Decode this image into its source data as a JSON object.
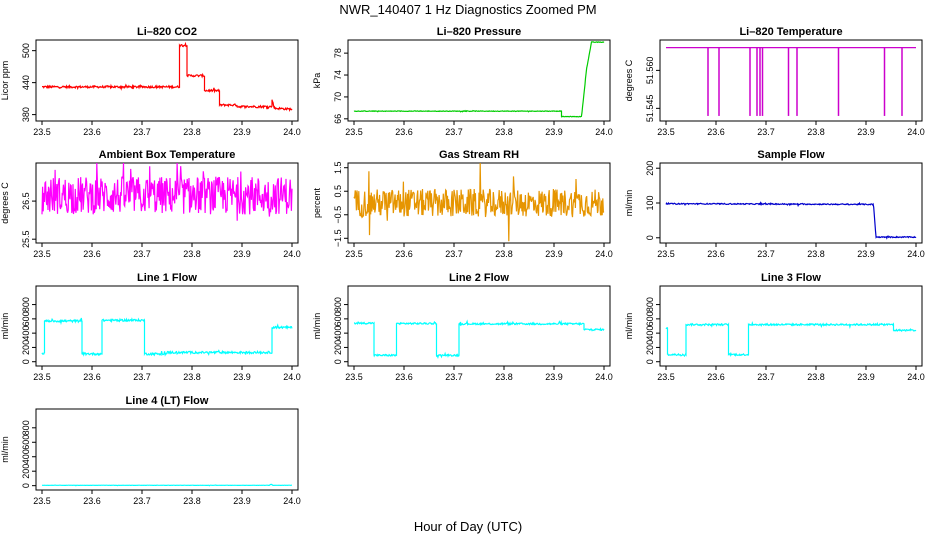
{
  "figure": {
    "title": "NWR_140407  1 Hz Diagnostics Zoomed PM",
    "xlabel": "Hour of Day (UTC)"
  },
  "chart_data": [
    {
      "id": "co2",
      "type": "line",
      "title": "Li–820 CO2",
      "ylabel": "Licor ppm",
      "color": "#ff0000",
      "xlim": [
        23.5,
        24.0
      ],
      "ylim": [
        368,
        520
      ],
      "yticks": [
        "380",
        "440",
        "500"
      ],
      "ytick_values": [
        380,
        440,
        500
      ],
      "xticks": [
        "23.5",
        "23.6",
        "23.7",
        "23.8",
        "23.9",
        "24.0"
      ],
      "x": [
        23.5,
        23.775,
        23.775,
        23.79,
        23.79,
        23.825,
        23.825,
        23.84,
        23.84,
        23.855,
        23.855,
        23.89,
        23.89,
        23.96,
        23.96,
        23.965,
        23.965,
        24.0
      ],
      "values": [
        432,
        432,
        510,
        510,
        453,
        453,
        425,
        425,
        425,
        425,
        398,
        398,
        395,
        395,
        408,
        392,
        392,
        390
      ],
      "noise": 2
    },
    {
      "id": "pressure",
      "type": "line",
      "title": "Li–820 Pressure",
      "ylabel": "kPa",
      "color": "#00cc00",
      "xlim": [
        23.5,
        24.0
      ],
      "ylim": [
        65.6,
        80.4
      ],
      "yticks": [
        "66",
        "70",
        "74",
        "78"
      ],
      "ytick_values": [
        66,
        70,
        74,
        78
      ],
      "xticks": [
        "23.5",
        "23.6",
        "23.7",
        "23.8",
        "23.9",
        "24.0"
      ],
      "x": [
        23.5,
        23.915,
        23.915,
        23.955,
        23.965,
        23.975,
        24.0
      ],
      "values": [
        67.4,
        67.4,
        66.4,
        66.4,
        75,
        80,
        80
      ],
      "noise": 0.05
    },
    {
      "id": "temperature",
      "type": "line",
      "title": "Li–820 Temperature",
      "ylabel": "degrees C",
      "color": "#cc00cc",
      "xlim": [
        23.5,
        24.0
      ],
      "ylim": [
        51.54,
        51.572
      ],
      "yticks": [
        "51.545",
        "51.560"
      ],
      "ytick_values": [
        51.545,
        51.56
      ],
      "xticks": [
        "23.5",
        "23.6",
        "23.7",
        "23.8",
        "23.9",
        "24.0"
      ],
      "x": [
        23.5,
        24.0
      ],
      "values": [
        51.569,
        51.569
      ],
      "dips": [
        23.584,
        23.606,
        23.668,
        23.682,
        23.688,
        23.693,
        23.745,
        23.762,
        23.845,
        23.937,
        23.972
      ],
      "dip_value": 51.542,
      "noise": 0
    },
    {
      "id": "ambient",
      "type": "line",
      "title": "Ambient Box Temperature",
      "ylabel": "degrees C",
      "color": "#ff00ff",
      "xlim": [
        23.5,
        24.0
      ],
      "ylim": [
        25.4,
        27.5
      ],
      "yticks": [
        "25.5",
        "26.5"
      ],
      "ytick_values": [
        25.5,
        26.5
      ],
      "xticks": [
        "23.5",
        "23.6",
        "23.7",
        "23.8",
        "23.9",
        "24.0"
      ],
      "x": [
        23.5,
        24.0
      ],
      "values": [
        26.65,
        26.65
      ],
      "noise": 0.5
    },
    {
      "id": "rh",
      "type": "line",
      "title": "Gas Stream RH",
      "ylabel": "percent",
      "color": "#e69500",
      "xlim": [
        23.5,
        24.0
      ],
      "ylim": [
        -1.7,
        1.7
      ],
      "yticks": [
        "−1.5",
        "−0.5",
        "0.5",
        "1.5"
      ],
      "ytick_values": [
        -1.5,
        -0.5,
        0.5,
        1.5
      ],
      "xticks": [
        "23.5",
        "23.6",
        "23.7",
        "23.8",
        "23.9",
        "24.0"
      ],
      "x": [
        23.5,
        24.0
      ],
      "values": [
        0,
        0
      ],
      "noise": 0.6
    },
    {
      "id": "sample_flow",
      "type": "line",
      "title": "Sample Flow",
      "ylabel": "ml/min",
      "color": "#0000cc",
      "xlim": [
        23.5,
        24.0
      ],
      "ylim": [
        -15,
        215
      ],
      "yticks": [
        "0",
        "100",
        "200"
      ],
      "ytick_values": [
        0,
        100,
        200
      ],
      "xticks": [
        "23.5",
        "23.6",
        "23.7",
        "23.8",
        "23.9",
        "24.0"
      ],
      "x": [
        23.5,
        23.91,
        23.915,
        23.92,
        24.0
      ],
      "values": [
        98,
        96,
        96,
        2,
        2
      ],
      "noise": 1.5
    },
    {
      "id": "line1",
      "type": "line",
      "title": "Line 1 Flow",
      "ylabel": "ml/min",
      "color": "#00ffff",
      "xlim": [
        23.5,
        24.0
      ],
      "ylim": [
        -60,
        1060
      ],
      "yticks": [
        "0",
        "200",
        "400",
        "600",
        "800"
      ],
      "ytick_values": [
        0,
        200,
        400,
        600,
        800
      ],
      "xticks": [
        "23.5",
        "23.6",
        "23.7",
        "23.8",
        "23.9",
        "24.0"
      ],
      "x": [
        23.5,
        23.505,
        23.505,
        23.58,
        23.58,
        23.62,
        23.62,
        23.705,
        23.705,
        23.75,
        23.75,
        23.96,
        23.96,
        24.0
      ],
      "values": [
        120,
        120,
        570,
        570,
        110,
        110,
        580,
        580,
        110,
        110,
        130,
        130,
        480,
        480
      ],
      "noise": 15
    },
    {
      "id": "line2",
      "type": "line",
      "title": "Line 2 Flow",
      "ylabel": "ml/min",
      "color": "#00ffff",
      "xlim": [
        23.5,
        24.0
      ],
      "ylim": [
        -60,
        1060
      ],
      "yticks": [
        "0",
        "200",
        "400",
        "600",
        "800"
      ],
      "ytick_values": [
        0,
        200,
        400,
        600,
        800
      ],
      "xticks": [
        "23.5",
        "23.6",
        "23.7",
        "23.8",
        "23.9",
        "24.0"
      ],
      "x": [
        23.5,
        23.54,
        23.54,
        23.585,
        23.585,
        23.665,
        23.665,
        23.71,
        23.71,
        23.96,
        23.96,
        24.0
      ],
      "values": [
        540,
        540,
        90,
        90,
        535,
        535,
        90,
        90,
        530,
        530,
        450,
        450
      ],
      "noise": 12
    },
    {
      "id": "line3",
      "type": "line",
      "title": "Line 3 Flow",
      "ylabel": "ml/min",
      "color": "#00ffff",
      "xlim": [
        23.5,
        24.0
      ],
      "ylim": [
        -60,
        1060
      ],
      "yticks": [
        "0",
        "200",
        "400",
        "600",
        "800"
      ],
      "ytick_values": [
        0,
        200,
        400,
        600,
        800
      ],
      "xticks": [
        "23.5",
        "23.6",
        "23.7",
        "23.8",
        "23.9",
        "24.0"
      ],
      "x": [
        23.5,
        23.503,
        23.503,
        23.54,
        23.54,
        23.625,
        23.625,
        23.665,
        23.665,
        23.955,
        23.955,
        24.0
      ],
      "values": [
        470,
        470,
        100,
        100,
        520,
        520,
        100,
        100,
        520,
        520,
        440,
        440
      ],
      "noise": 12
    },
    {
      "id": "line4",
      "type": "line",
      "title": "Line 4 (LT) Flow",
      "ylabel": "ml/min",
      "color": "#00ffff",
      "xlim": [
        23.5,
        24.0
      ],
      "ylim": [
        -60,
        1060
      ],
      "yticks": [
        "0",
        "200",
        "400",
        "600",
        "800"
      ],
      "ytick_values": [
        0,
        200,
        400,
        600,
        800
      ],
      "xticks": [
        "23.5",
        "23.6",
        "23.7",
        "23.8",
        "23.9",
        "24.0"
      ],
      "x": [
        23.5,
        23.955,
        23.958,
        23.962,
        24.0
      ],
      "values": [
        5,
        5,
        20,
        5,
        5
      ],
      "noise": 2
    }
  ]
}
